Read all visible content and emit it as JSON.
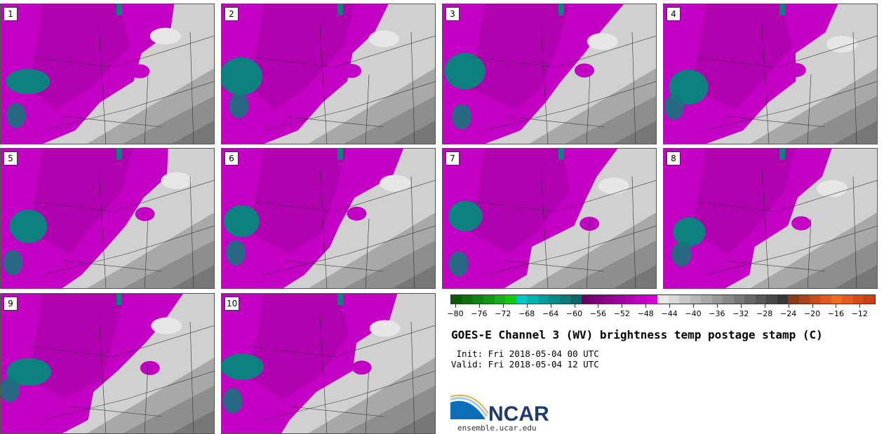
{
  "panels": [
    {
      "label": "1"
    },
    {
      "label": "2"
    },
    {
      "label": "3"
    },
    {
      "label": "4"
    },
    {
      "label": "5"
    },
    {
      "label": "6"
    },
    {
      "label": "7"
    },
    {
      "label": "8"
    },
    {
      "label": "9"
    },
    {
      "label": "10"
    }
  ],
  "colorbar": {
    "colors": [
      "#0b5a0b",
      "#0d700d",
      "#108410",
      "#139813",
      "#17b017",
      "#12cc12",
      "#00c8c8",
      "#00b4b4",
      "#00a0a0",
      "#068c8c",
      "#0d7a7a",
      "#0b6666",
      "#6b006b",
      "#7d007d",
      "#8f008f",
      "#a100a1",
      "#b300b3",
      "#c400c4",
      "#d600d6",
      "#e8e8e8",
      "#d8d8d8",
      "#c8c8c8",
      "#b8b8b8",
      "#a8a8a8",
      "#989898",
      "#888888",
      "#787878",
      "#686868",
      "#585858",
      "#484848",
      "#383838",
      "#8b3a1a",
      "#a8431b",
      "#c64e1d",
      "#e05a1f",
      "#f06a20",
      "#e55a1a",
      "#d84c18",
      "#c84014"
    ],
    "ticks": [
      "−80",
      "−76",
      "−72",
      "−68",
      "−64",
      "−60",
      "−56",
      "−52",
      "−48",
      "−44",
      "−40",
      "−36",
      "−32",
      "−28",
      "−24",
      "−20",
      "−16",
      "−12"
    ]
  },
  "title": "GOES-E Channel 3 (WV) brightness temp postage stamp (C)",
  "init": " Init: Fri 2018-05-04 00 UTC",
  "valid": "Valid: Fri 2018-05-04 12 UTC",
  "logo": {
    "text": "NCAR",
    "url": "ensemble.ucar.edu",
    "color": "#1f3b6e",
    "accent": "#0a6fb8"
  }
}
